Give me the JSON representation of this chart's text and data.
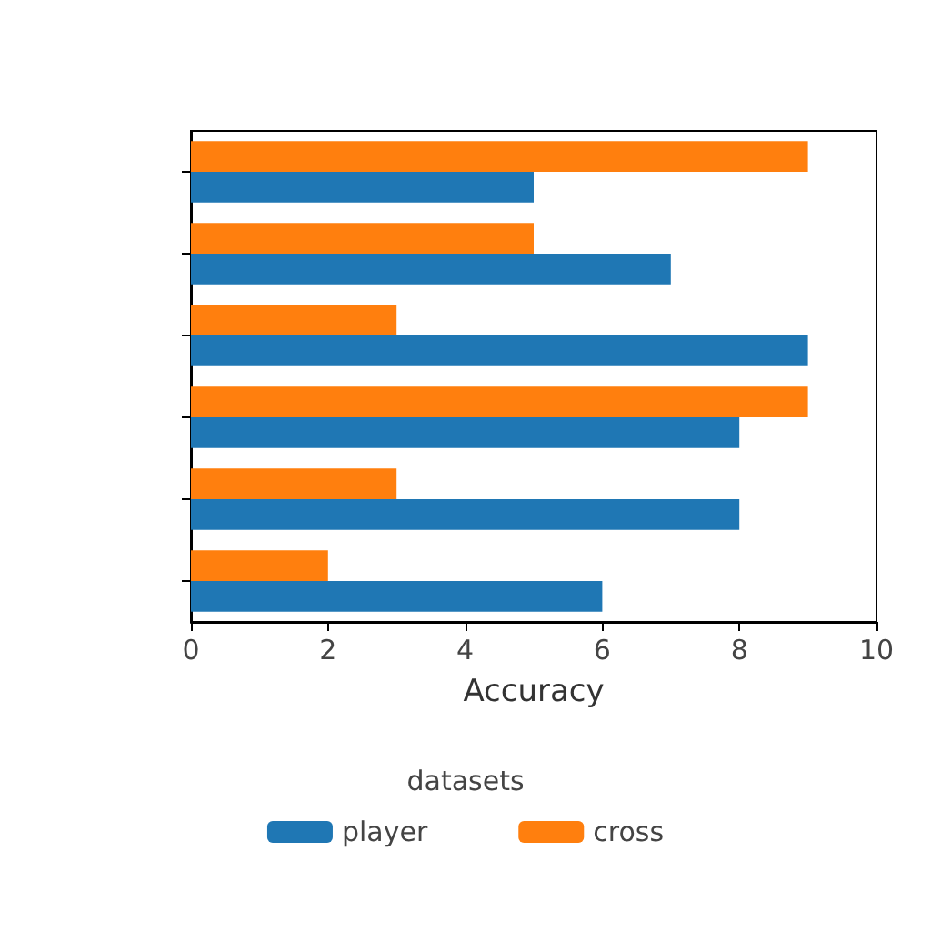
{
  "chart_data": {
    "type": "bar",
    "orientation": "horizontal",
    "xlabel": "Accuracy",
    "legend_title": "datasets",
    "legend": "bottom",
    "categories": [
      null,
      null,
      null,
      null,
      null,
      null
    ],
    "series": [
      {
        "name": "player",
        "color": "#1f77b4",
        "values": [
          5,
          7,
          9,
          8,
          8,
          6
        ]
      },
      {
        "name": "cross",
        "color": "#ff7f0e",
        "values": [
          9,
          5,
          3,
          9,
          3,
          2
        ]
      }
    ],
    "xlim": [
      0,
      10
    ],
    "xticks": [
      0,
      2,
      4,
      6,
      8,
      10
    ],
    "tick_labels": "x",
    "grid": false
  }
}
